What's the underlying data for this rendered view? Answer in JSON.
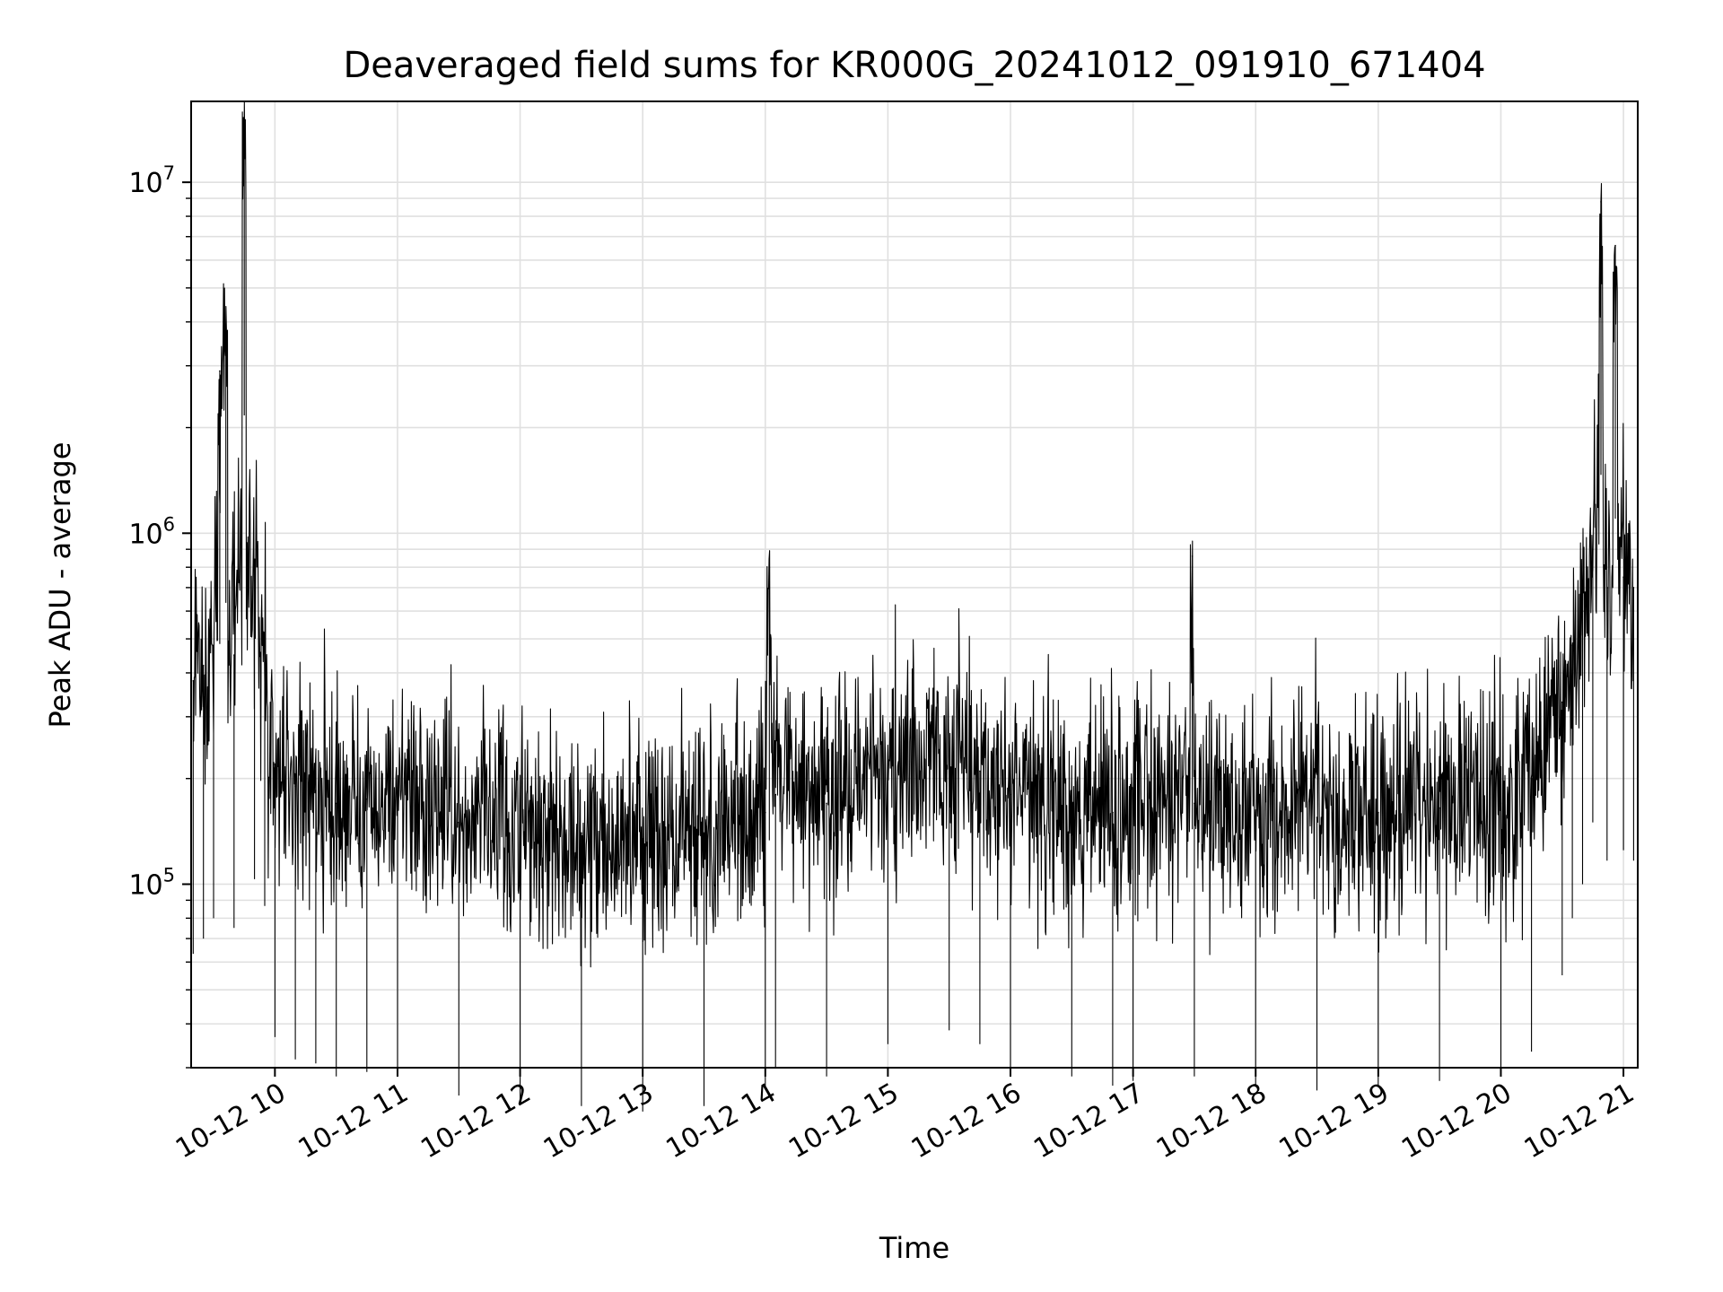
{
  "chart_data": {
    "type": "line",
    "title": "Deaveraged field sums for KR000G_20241012_091910_671404",
    "xlabel": "Time",
    "ylabel": "Peak ADU - average",
    "y_scale": "log",
    "ylim": [
      30000,
      17000000
    ],
    "xlim": [
      "2024-10-12 09:19",
      "2024-10-12 21:07"
    ],
    "grid": true,
    "line_color": "#000000",
    "x_tick_labels": [
      "10-12 10",
      "10-12 11",
      "10-12 12",
      "10-12 13",
      "10-12 14",
      "10-12 15",
      "10-12 16",
      "10-12 17",
      "10-12 18",
      "10-12 19",
      "10-12 20",
      "10-12 21"
    ],
    "y_tick_labels": [
      {
        "base": "10",
        "exp": "5",
        "value": 100000
      },
      {
        "base": "10",
        "exp": "6",
        "value": 1000000
      },
      {
        "base": "10",
        "exp": "7",
        "value": 10000000
      }
    ],
    "series": [
      {
        "x": [
          "2024-10-12 09:20",
          "2024-10-12 09:25",
          "2024-10-12 09:30",
          "2024-10-12 09:33",
          "2024-10-12 09:36",
          "2024-10-12 09:40",
          "2024-10-12 09:45",
          "2024-10-12 09:50",
          "2024-10-12 09:55",
          "2024-10-12 10:00",
          "2024-10-12 10:10",
          "2024-10-12 10:20",
          "2024-10-12 10:30",
          "2024-10-12 10:45",
          "2024-10-12 11:00",
          "2024-10-12 11:30",
          "2024-10-12 12:00",
          "2024-10-12 12:30",
          "2024-10-12 13:00",
          "2024-10-12 13:30",
          "2024-10-12 14:00",
          "2024-10-12 14:02",
          "2024-10-12 14:05",
          "2024-10-12 14:30",
          "2024-10-12 15:00",
          "2024-10-12 15:30",
          "2024-10-12 15:45",
          "2024-10-12 16:00",
          "2024-10-12 16:30",
          "2024-10-12 16:50",
          "2024-10-12 17:00",
          "2024-10-12 17:29",
          "2024-10-12 17:30",
          "2024-10-12 18:00",
          "2024-10-12 18:30",
          "2024-10-12 19:00",
          "2024-10-12 19:30",
          "2024-10-12 20:00",
          "2024-10-12 20:15",
          "2024-10-12 20:30",
          "2024-10-12 20:35",
          "2024-10-12 20:40",
          "2024-10-12 20:45",
          "2024-10-12 20:49",
          "2024-10-12 20:52",
          "2024-10-12 20:56",
          "2024-10-12 21:00",
          "2024-10-12 21:05"
        ],
        "y": [
          380000,
          420000,
          480000,
          2900000,
          3800000,
          450000,
          13000000,
          620000,
          520000,
          220000,
          190000,
          185000,
          170000,
          175000,
          180000,
          150000,
          145000,
          140000,
          135000,
          140000,
          160000,
          800000,
          180000,
          170000,
          210000,
          230000,
          210000,
          180000,
          170000,
          160000,
          165000,
          860000,
          170000,
          160000,
          155000,
          160000,
          165000,
          170000,
          200000,
          330000,
          480000,
          600000,
          900000,
          8800000,
          700000,
          6600000,
          750000,
          700000
        ]
      }
    ]
  }
}
